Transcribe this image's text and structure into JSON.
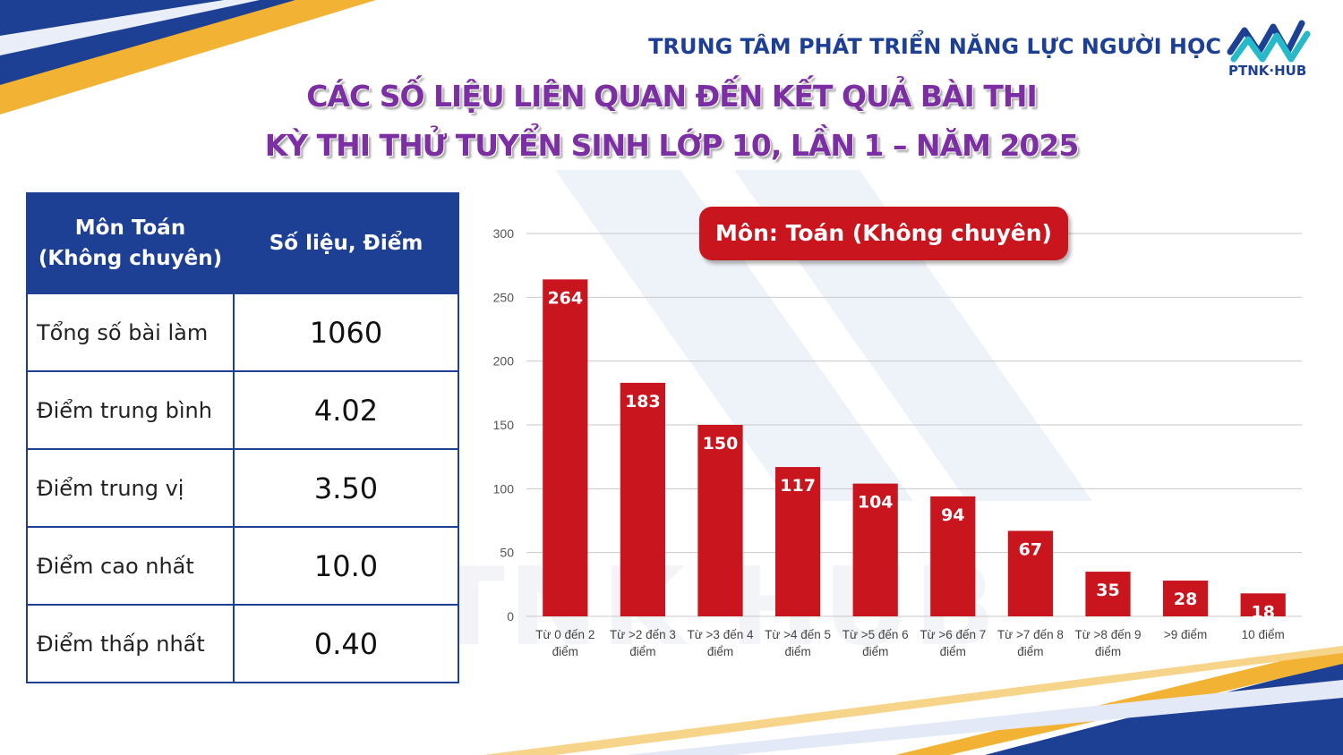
{
  "header": {
    "organization": "TRUNG TÂM PHÁT TRIỂN NĂNG LỰC NGƯỜI HỌC",
    "logo_text": "PTNK·HUB",
    "title_line1": "CÁC SỐ LIỆU LIÊN QUAN ĐẾN KẾT QUẢ BÀI THI",
    "title_line2": "KỲ THI THỬ TUYỂN SINH LỚP 10, LẦN 1 – NĂM 2025"
  },
  "stats_table": {
    "header_subject_line1": "Môn Toán",
    "header_subject_line2": "(Không chuyên)",
    "header_value": "Số liệu, Điểm",
    "rows": [
      {
        "label": "Tổng số bài làm",
        "value": "1060"
      },
      {
        "label": "Điểm trung bình",
        "value": "4.02"
      },
      {
        "label": "Điểm trung vị",
        "value": "3.50"
      },
      {
        "label": "Điểm cao nhất",
        "value": "10.0"
      },
      {
        "label": "Điểm thấp nhất",
        "value": "0.40"
      }
    ]
  },
  "watermark": "PTNK HUB",
  "colors": {
    "navy": "#1d3f94",
    "bar": "#c8151e",
    "title": "#7b2fa3",
    "gold": "#f2b233"
  },
  "chart_data": {
    "type": "bar",
    "title": "Môn: Toán (Không chuyên)",
    "categories": [
      [
        "Từ 0 đến 2",
        "điểm"
      ],
      [
        "Từ >2 đến 3",
        "điểm"
      ],
      [
        "Từ >3 đến 4",
        "điểm"
      ],
      [
        "Từ >4 đến 5",
        "điểm"
      ],
      [
        "Từ >5 đến 6",
        "điểm"
      ],
      [
        "Từ >6 đến 7",
        "điểm"
      ],
      [
        "Từ >7 đến 8",
        "điểm"
      ],
      [
        "Từ >8 đến 9",
        "điểm"
      ],
      [
        ">9 điểm"
      ],
      [
        "10 điểm"
      ]
    ],
    "values": [
      264,
      183,
      150,
      117,
      104,
      94,
      67,
      35,
      28,
      18
    ],
    "ylim": [
      0,
      300
    ],
    "yticks": [
      0,
      50,
      100,
      150,
      200,
      250,
      300
    ],
    "grid": true,
    "xlabel": "",
    "ylabel": ""
  }
}
